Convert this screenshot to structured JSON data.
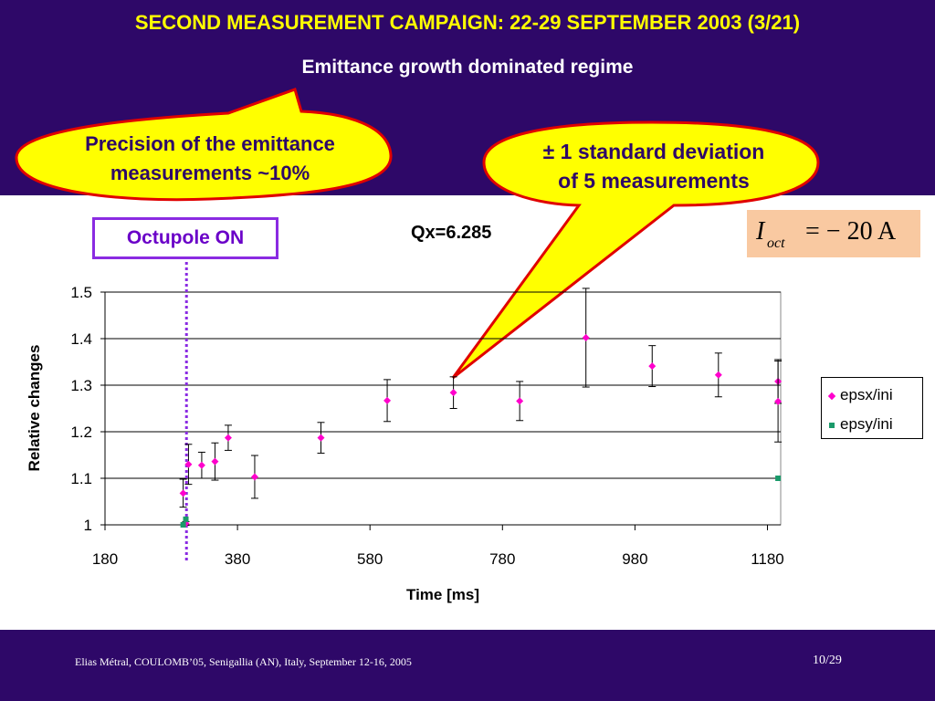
{
  "slide": {
    "title": "SECOND MEASUREMENT CAMPAIGN: 22-29 SEPTEMBER 2003 (3/21)",
    "subtitle": "Emittance growth dominated regime",
    "callout_left": "Precision of the emittance measurements ~10%",
    "callout_left_line1": "Precision of the emittance",
    "callout_left_line2": "measurements ~10%",
    "callout_right_line1": "± 1 standard deviation",
    "callout_right_line2": "of 5 measurements",
    "octupole_label": "Octupole ON",
    "qx_label": "Qx=6.285",
    "formula": {
      "lhs": "I",
      "subscript": "oct",
      "rhs": "= − 20 A"
    },
    "footer_left": "Elias Métral, COULOMB’05, Senigallia (AN), Italy, September 12-16, 2005",
    "footer_right": "10/29"
  },
  "colors": {
    "band": "#2e0868",
    "title": "#ffff00",
    "callout_fill": "#ffff00",
    "callout_border": "#e00000",
    "octupole_line": "#8a2be2",
    "epsx": "#ff00cc",
    "epsy": "#1a9a6a",
    "formula_bg": "#f9c9a1"
  },
  "chart_data": {
    "type": "scatter",
    "xlabel": "Time [ms]",
    "ylabel": "Relative changes",
    "xlim": [
      180,
      1200
    ],
    "ylim": [
      1,
      1.5
    ],
    "xticks": [
      180,
      380,
      580,
      780,
      980,
      1180
    ],
    "yticks": [
      1,
      1.1,
      1.2,
      1.3,
      1.4,
      1.5
    ],
    "ytick_labels": [
      "1",
      "1.1",
      "1.2",
      "1.3",
      "1.4",
      "1.5"
    ],
    "grid": "horizontal",
    "legend_position": "right",
    "octupole_on_x": 303,
    "series": [
      {
        "name": "epsx/ini",
        "marker": "diamond",
        "points": [
          {
            "x": 298,
            "y": 1.068,
            "err": 0.03
          },
          {
            "x": 302,
            "y": 1.003,
            "err": 0.004
          },
          {
            "x": 306,
            "y": 1.13,
            "err": 0.043
          },
          {
            "x": 326,
            "y": 1.128,
            "err": 0.028
          },
          {
            "x": 346,
            "y": 1.136,
            "err": 0.04
          },
          {
            "x": 366,
            "y": 1.187,
            "err": 0.027
          },
          {
            "x": 406,
            "y": 1.103,
            "err": 0.046
          },
          {
            "x": 506,
            "y": 1.187,
            "err": 0.033
          },
          {
            "x": 606,
            "y": 1.267,
            "err": 0.045
          },
          {
            "x": 706,
            "y": 1.284,
            "err": 0.034
          },
          {
            "x": 806,
            "y": 1.266,
            "err": 0.042
          },
          {
            "x": 906,
            "y": 1.402,
            "err": 0.106
          },
          {
            "x": 1006,
            "y": 1.341,
            "err": 0.044
          },
          {
            "x": 1106,
            "y": 1.322,
            "err": 0.047
          },
          {
            "x": 1196,
            "y": 1.308,
            "err": 0.047
          },
          {
            "x": 1196,
            "y": 1.265,
            "err": 0.087
          }
        ]
      },
      {
        "name": "epsy/ini",
        "marker": "square",
        "points": [
          {
            "x": 298,
            "y": 1.0
          },
          {
            "x": 302,
            "y": 1.012
          },
          {
            "x": 1196,
            "y": 1.1
          }
        ]
      }
    ]
  }
}
